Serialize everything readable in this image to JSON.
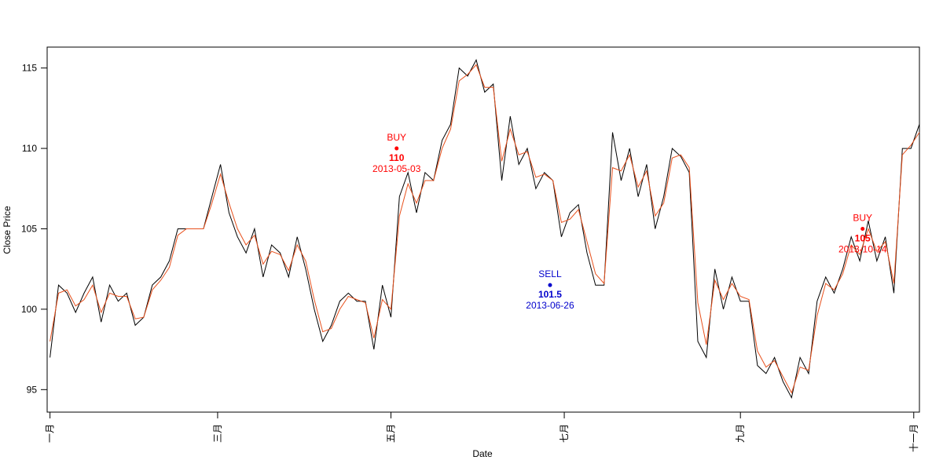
{
  "chart_data": {
    "type": "line",
    "title": "",
    "xlabel": "Date",
    "ylabel": "Close Price",
    "xlim": [
      "2012-12-31",
      "2013-11-03"
    ],
    "ylim": [
      93.6,
      116.3
    ],
    "yticks": [
      95,
      100,
      105,
      110,
      115
    ],
    "xticks": [
      {
        "date": "2013-01-01",
        "label": "一月"
      },
      {
        "date": "2013-03-01",
        "label": "三月"
      },
      {
        "date": "2013-05-01",
        "label": "五月"
      },
      {
        "date": "2013-07-01",
        "label": "七月"
      },
      {
        "date": "2013-09-01",
        "label": "九月"
      },
      {
        "date": "2013-11-01",
        "label": "十一月"
      }
    ],
    "grid": false,
    "colors": {
      "close": "#000000",
      "smooth": "#e8501c",
      "buy": "#ff0000",
      "sell": "#0000cc"
    },
    "series": [
      {
        "key": "close",
        "dates": [
          "2013-01-01",
          "2013-01-04",
          "2013-01-07",
          "2013-01-10",
          "2013-01-13",
          "2013-01-16",
          "2013-01-19",
          "2013-01-22",
          "2013-01-25",
          "2013-01-28",
          "2013-01-31",
          "2013-02-03",
          "2013-02-06",
          "2013-02-09",
          "2013-02-12",
          "2013-02-15",
          "2013-02-18",
          "2013-02-21",
          "2013-02-24",
          "2013-02-27",
          "2013-03-02",
          "2013-03-05",
          "2013-03-08",
          "2013-03-11",
          "2013-03-14",
          "2013-03-17",
          "2013-03-20",
          "2013-03-23",
          "2013-03-26",
          "2013-03-29",
          "2013-04-01",
          "2013-04-04",
          "2013-04-07",
          "2013-04-10",
          "2013-04-13",
          "2013-04-16",
          "2013-04-19",
          "2013-04-22",
          "2013-04-25",
          "2013-04-28",
          "2013-05-01",
          "2013-05-04",
          "2013-05-07",
          "2013-05-10",
          "2013-05-13",
          "2013-05-16",
          "2013-05-19",
          "2013-05-22",
          "2013-05-25",
          "2013-05-28",
          "2013-05-31",
          "2013-06-03",
          "2013-06-06",
          "2013-06-09",
          "2013-06-12",
          "2013-06-15",
          "2013-06-18",
          "2013-06-21",
          "2013-06-24",
          "2013-06-27",
          "2013-06-30",
          "2013-07-03",
          "2013-07-06",
          "2013-07-09",
          "2013-07-12",
          "2013-07-15",
          "2013-07-18",
          "2013-07-21",
          "2013-07-24",
          "2013-07-27",
          "2013-07-30",
          "2013-08-02",
          "2013-08-05",
          "2013-08-08",
          "2013-08-11",
          "2013-08-14",
          "2013-08-17",
          "2013-08-20",
          "2013-08-23",
          "2013-08-26",
          "2013-08-29",
          "2013-09-01",
          "2013-09-04",
          "2013-09-07",
          "2013-09-10",
          "2013-09-13",
          "2013-09-16",
          "2013-09-19",
          "2013-09-22",
          "2013-09-25",
          "2013-09-28",
          "2013-10-01",
          "2013-10-04",
          "2013-10-07",
          "2013-10-10",
          "2013-10-13",
          "2013-10-16",
          "2013-10-19",
          "2013-10-22",
          "2013-10-25"
        ],
        "values": [
          97.0,
          101.5,
          101.0,
          99.8,
          101.0,
          102.0,
          99.2,
          101.5,
          100.5,
          101.0,
          99.0,
          99.5,
          101.5,
          102.0,
          103.0,
          105.0,
          105.0,
          105.0,
          105.0,
          107.0,
          109.0,
          106.0,
          104.5,
          103.5,
          105.0,
          102.0,
          104.0,
          103.5,
          102.0,
          104.5,
          102.5,
          100.0,
          98.0,
          99.0,
          100.5,
          101.0,
          100.5,
          100.5,
          97.5,
          101.5,
          99.5,
          107.0,
          108.5,
          106.0,
          108.5,
          108.0,
          110.5,
          111.5,
          115.0,
          114.5,
          115.5,
          113.5,
          114.0,
          108.0,
          112.0,
          109.0,
          110.0,
          107.5,
          108.5,
          108.0,
          104.5,
          106.0,
          106.5,
          103.5,
          101.5,
          101.5,
          111.0,
          108.0,
          110.0,
          107.0,
          109.0,
          105.0,
          107.0,
          110.0,
          109.5,
          108.5,
          98.0,
          97.0,
          102.5,
          100.0,
          102.0,
          100.5,
          100.5,
          96.5,
          96.0,
          97.0,
          95.5,
          94.5,
          97.0,
          96.0,
          100.5,
          102.0,
          101.0,
          102.5,
          104.5,
          103.0,
          105.5,
          103.0,
          104.5,
          101.0
        ]
      },
      {
        "key": "smooth",
        "dates": [
          "2013-01-01",
          "2013-01-04",
          "2013-01-07",
          "2013-01-10",
          "2013-01-13",
          "2013-01-16",
          "2013-01-19",
          "2013-01-22",
          "2013-01-25",
          "2013-01-28",
          "2013-01-31",
          "2013-02-03",
          "2013-02-06",
          "2013-02-09",
          "2013-02-12",
          "2013-02-15",
          "2013-02-18",
          "2013-02-21",
          "2013-02-24",
          "2013-02-27",
          "2013-03-02",
          "2013-03-05",
          "2013-03-08",
          "2013-03-11",
          "2013-03-14",
          "2013-03-17",
          "2013-03-20",
          "2013-03-23",
          "2013-03-26",
          "2013-03-29",
          "2013-04-01",
          "2013-04-04",
          "2013-04-07",
          "2013-04-10",
          "2013-04-13",
          "2013-04-16",
          "2013-04-19",
          "2013-04-22",
          "2013-04-25",
          "2013-04-28",
          "2013-05-01",
          "2013-05-04",
          "2013-05-07",
          "2013-05-10",
          "2013-05-13",
          "2013-05-16",
          "2013-05-19",
          "2013-05-22",
          "2013-05-25",
          "2013-05-28",
          "2013-05-31",
          "2013-06-03",
          "2013-06-06",
          "2013-06-09",
          "2013-06-12",
          "2013-06-15",
          "2013-06-18",
          "2013-06-21",
          "2013-06-24",
          "2013-06-27",
          "2013-06-30",
          "2013-07-03",
          "2013-07-06",
          "2013-07-09",
          "2013-07-12",
          "2013-07-15",
          "2013-07-18",
          "2013-07-21",
          "2013-07-24",
          "2013-07-27",
          "2013-07-30",
          "2013-08-02",
          "2013-08-05",
          "2013-08-08",
          "2013-08-11",
          "2013-08-14",
          "2013-08-17",
          "2013-08-20",
          "2013-08-23",
          "2013-08-26",
          "2013-08-29",
          "2013-09-01",
          "2013-09-04",
          "2013-09-07",
          "2013-09-10",
          "2013-09-13",
          "2013-09-16",
          "2013-09-19",
          "2013-09-22",
          "2013-09-25",
          "2013-09-28",
          "2013-10-01",
          "2013-10-04",
          "2013-10-07",
          "2013-10-10",
          "2013-10-13",
          "2013-10-16",
          "2013-10-19",
          "2013-10-22",
          "2013-10-25"
        ],
        "values": [
          98.0,
          101.0,
          101.2,
          100.2,
          100.6,
          101.5,
          99.8,
          101.0,
          100.8,
          100.8,
          99.4,
          99.5,
          101.2,
          101.8,
          102.6,
          104.6,
          105.0,
          105.0,
          105.0,
          106.6,
          108.4,
          106.6,
          105.0,
          104.0,
          104.6,
          102.8,
          103.6,
          103.4,
          102.4,
          104.0,
          103.0,
          100.6,
          98.6,
          98.8,
          100.0,
          100.8,
          100.6,
          100.4,
          98.2,
          100.6,
          100.0,
          105.8,
          107.8,
          106.6,
          108.0,
          108.0,
          110.0,
          111.2,
          114.2,
          114.6,
          115.2,
          113.8,
          113.8,
          109.2,
          111.2,
          109.6,
          109.8,
          108.2,
          108.4,
          108.0,
          105.4,
          105.6,
          106.2,
          104.2,
          102.2,
          101.6,
          108.8,
          108.6,
          109.6,
          107.6,
          108.6,
          105.8,
          106.6,
          109.4,
          109.6,
          108.8,
          100.4,
          97.8,
          101.8,
          100.6,
          101.6,
          100.8,
          100.6,
          97.4,
          96.4,
          96.8,
          95.8,
          94.8,
          96.4,
          96.2,
          99.6,
          101.6,
          101.2,
          102.2,
          104.0,
          103.4,
          105.0,
          103.6,
          104.2,
          101.6
        ]
      }
    ],
    "close_extension": {
      "dates": [
        "2013-10-28",
        "2013-10-31",
        "2013-11-03"
      ],
      "values": [
        110.0,
        110.0,
        111.5
      ],
      "smooth_values": [
        109.6,
        110.2,
        111.0
      ]
    },
    "annotations": [
      {
        "kind": "buy",
        "date": "2013-05-03",
        "price": 110,
        "label": "BUY",
        "value_text": "110",
        "date_text": "2013-05-03"
      },
      {
        "kind": "sell",
        "date": "2013-06-26",
        "price": 101.5,
        "label": "SELL",
        "value_text": "101.5",
        "date_text": "2013-06-26"
      },
      {
        "kind": "buy",
        "date": "2013-10-14",
        "price": 105,
        "label": "BUY",
        "value_text": "105",
        "date_text": "2013-10-14"
      }
    ]
  }
}
